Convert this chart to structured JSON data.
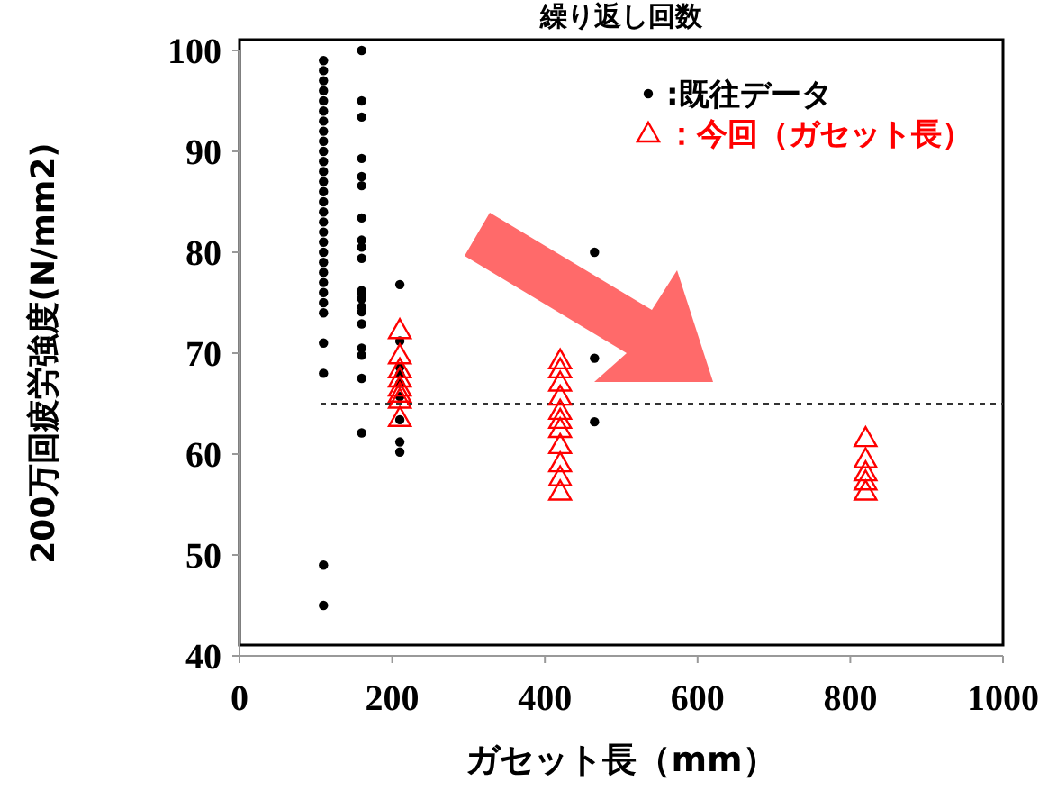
{
  "chart_data": {
    "type": "scatter",
    "title": "繰り返し回数",
    "xlabel": "ガセット長（mm）",
    "ylabel": "200万回疲労強度(N/mm2)",
    "xlim": [
      0,
      1000
    ],
    "xticks": [
      0,
      200,
      400,
      600,
      800,
      1000
    ],
    "ylim": [
      40,
      100
    ],
    "yticks": [
      40,
      50,
      60,
      70,
      80,
      90,
      100
    ],
    "grid": false,
    "legend": "top right",
    "ref_lines": [
      {
        "axis": "y",
        "value": 65,
        "line_style": "dashed",
        "color": "#333333"
      }
    ],
    "series": [
      {
        "name": ":既往データ",
        "color": "#000000",
        "marker": "circle",
        "x": [
          110,
          110,
          110,
          110,
          110,
          110,
          110,
          110,
          110,
          110,
          110,
          110,
          110,
          110,
          110,
          110,
          110,
          110,
          110,
          110,
          110,
          110,
          110,
          110,
          110,
          110,
          110,
          110,
          110,
          110,
          160,
          160,
          160,
          160,
          160,
          160,
          160,
          160,
          160,
          160,
          160,
          160,
          160,
          160,
          160,
          160,
          160,
          160,
          160,
          160,
          210,
          210,
          210,
          210,
          210,
          210,
          210,
          210,
          210,
          465,
          465,
          465
        ],
        "values": [
          99,
          98,
          97,
          96,
          95,
          94,
          93,
          92,
          91,
          90,
          89,
          88,
          87,
          86,
          85,
          84,
          83,
          82,
          81,
          80,
          79,
          78,
          77,
          76,
          75,
          74,
          71,
          68,
          49,
          45,
          100,
          95,
          93.4,
          89.3,
          87.5,
          86.6,
          83.4,
          81.2,
          80.5,
          79.4,
          76.2,
          75.9,
          75.4,
          74.6,
          74.1,
          72.9,
          70.5,
          69.8,
          67.5,
          62.1,
          76.8,
          71.2,
          68.6,
          67.9,
          67,
          65.7,
          63.4,
          61.2,
          60.2,
          80,
          69.5,
          63.2
        ]
      },
      {
        "name": "：今回（ガセット長）",
        "color": "#ff0000",
        "marker": "triangle",
        "x": [
          210,
          210,
          210,
          210,
          210,
          210,
          210,
          210,
          420,
          420,
          420,
          420,
          420,
          420,
          420,
          420,
          420,
          420,
          420,
          820,
          820,
          820,
          820,
          820
        ],
        "values": [
          72.3,
          69.8,
          68.4,
          67.5,
          66.6,
          66,
          65.4,
          63.6,
          69.3,
          68.4,
          67.1,
          65.7,
          64.3,
          63.4,
          62.5,
          60.9,
          59.1,
          57.7,
          56.3,
          61.6,
          59.5,
          58.2,
          57.3,
          56.3
        ]
      }
    ]
  }
}
